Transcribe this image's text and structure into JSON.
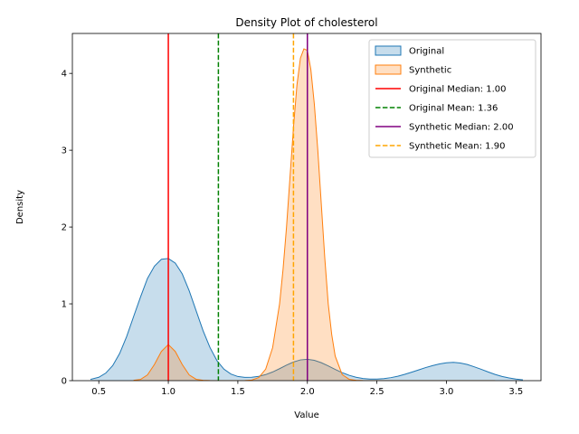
{
  "chart_data": {
    "type": "area",
    "title": "Density Plot of cholesterol",
    "xlabel": "Value",
    "ylabel": "Density",
    "xlim": [
      0.31,
      3.68
    ],
    "ylim": [
      0,
      4.52
    ],
    "xticks": [
      "0.5",
      "1.0",
      "1.5",
      "2.0",
      "2.5",
      "3.0",
      "3.5"
    ],
    "yticks": [
      "0",
      "1",
      "2",
      "3",
      "4"
    ],
    "grid": false,
    "legend_position": "top-right",
    "series": [
      {
        "name": "Original",
        "kind": "density",
        "color": "#1f77b4",
        "x": [
          0.44,
          0.5,
          0.55,
          0.6,
          0.65,
          0.7,
          0.75,
          0.8,
          0.85,
          0.9,
          0.95,
          1.0,
          1.05,
          1.1,
          1.15,
          1.2,
          1.25,
          1.3,
          1.35,
          1.4,
          1.45,
          1.5,
          1.55,
          1.6,
          1.65,
          1.7,
          1.75,
          1.8,
          1.85,
          1.9,
          1.95,
          2.0,
          2.05,
          2.1,
          2.15,
          2.2,
          2.25,
          2.3,
          2.35,
          2.4,
          2.45,
          2.5,
          2.55,
          2.6,
          2.65,
          2.7,
          2.75,
          2.8,
          2.85,
          2.9,
          2.95,
          3.0,
          3.05,
          3.1,
          3.15,
          3.2,
          3.25,
          3.3,
          3.35,
          3.4,
          3.45,
          3.5,
          3.55
        ],
        "y": [
          0.017,
          0.044,
          0.098,
          0.196,
          0.354,
          0.573,
          0.833,
          1.09,
          1.33,
          1.49,
          1.58,
          1.59,
          1.53,
          1.39,
          1.17,
          0.91,
          0.65,
          0.43,
          0.26,
          0.15,
          0.086,
          0.054,
          0.043,
          0.044,
          0.056,
          0.079,
          0.113,
          0.156,
          0.202,
          0.243,
          0.27,
          0.278,
          0.265,
          0.234,
          0.192,
          0.146,
          0.104,
          0.07,
          0.044,
          0.028,
          0.021,
          0.021,
          0.027,
          0.039,
          0.057,
          0.082,
          0.11,
          0.14,
          0.17,
          0.196,
          0.218,
          0.232,
          0.238,
          0.23,
          0.21,
          0.18,
          0.148,
          0.113,
          0.081,
          0.055,
          0.035,
          0.021,
          0.011
        ]
      },
      {
        "name": "Synthetic",
        "kind": "density",
        "color": "#ff7f0e",
        "x": [
          0.75,
          0.8,
          0.85,
          0.9,
          0.95,
          1.0,
          1.05,
          1.1,
          1.15,
          1.2,
          1.25,
          1.3,
          1.35,
          1.4,
          1.45,
          1.5,
          1.55,
          1.6,
          1.65,
          1.7,
          1.75,
          1.8,
          1.825,
          1.85,
          1.875,
          1.9,
          1.925,
          1.95,
          1.975,
          2.0,
          2.025,
          2.05,
          2.075,
          2.1,
          2.125,
          2.15,
          2.175,
          2.2,
          2.25,
          2.3,
          2.35,
          2.4,
          2.5,
          2.6,
          2.7,
          2.8,
          2.9,
          3.0,
          3.1,
          3.2,
          3.3,
          3.35
        ],
        "y": [
          0.004,
          0.016,
          0.075,
          0.21,
          0.38,
          0.47,
          0.38,
          0.21,
          0.075,
          0.018,
          0.004,
          0.001,
          0.0,
          0.0,
          0.0,
          0.0,
          0.001,
          0.008,
          0.04,
          0.15,
          0.43,
          1.0,
          1.45,
          2.0,
          2.65,
          3.3,
          3.85,
          4.2,
          4.32,
          4.3,
          4.05,
          3.6,
          3.0,
          2.3,
          1.6,
          1.0,
          0.6,
          0.32,
          0.08,
          0.018,
          0.004,
          0.001,
          0.0,
          0.0,
          0.0,
          0.0,
          0.0,
          0.0,
          0.0,
          0.0,
          0.0,
          0.0
        ]
      }
    ],
    "reference_lines": [
      {
        "name": "Original Median: 1.00",
        "x": 1.0,
        "color": "#ff0000",
        "style": "solid"
      },
      {
        "name": "Original Mean: 1.36",
        "x": 1.36,
        "color": "#008000",
        "style": "dashed"
      },
      {
        "name": "Synthetic Median: 2.00",
        "x": 2.0,
        "color": "#800080",
        "style": "solid"
      },
      {
        "name": "Synthetic Mean: 1.90",
        "x": 1.9,
        "color": "#ffa500",
        "style": "dashed"
      }
    ]
  }
}
